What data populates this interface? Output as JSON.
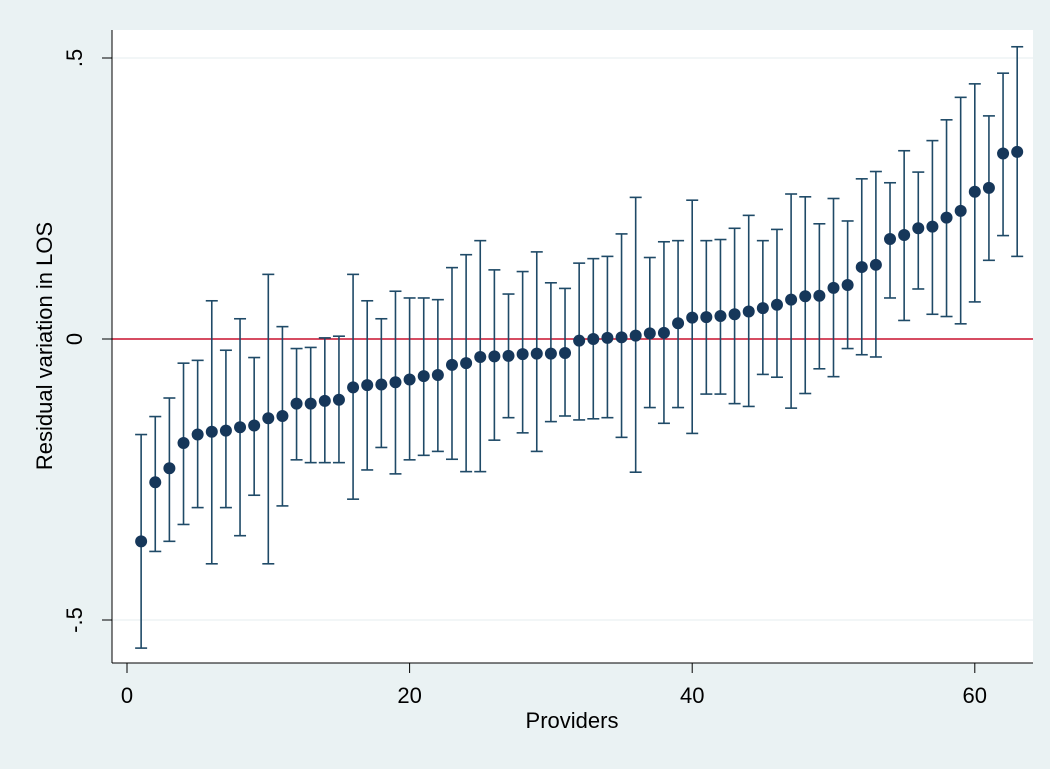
{
  "chart_data": {
    "type": "scatter",
    "subtype": "caterpillar (point estimates with confidence-interval bars)",
    "xlabel": "Providers",
    "ylabel": "Residual variation in LOS",
    "xlim": [
      0,
      63
    ],
    "ylim": [
      -0.55,
      0.52
    ],
    "x_ticks": [
      0,
      20,
      40,
      60
    ],
    "x_tick_labels": [
      "0",
      "20",
      "40",
      "60"
    ],
    "y_ticks": [
      -0.5,
      0,
      0.5
    ],
    "y_tick_labels": [
      "-.5",
      "0",
      ".5"
    ],
    "grid": "horizontal at y ticks",
    "reference_line": {
      "y": 0,
      "color": "#c8102e"
    },
    "colors": {
      "point": "#16375a",
      "error_bar": "#1f4a67",
      "background": "#eaf2f3",
      "plot_area": "#ffffff"
    },
    "series": [
      {
        "x": [
          1,
          2,
          3,
          4,
          5,
          6,
          7,
          8,
          9,
          10,
          11,
          12,
          13,
          14,
          15,
          16,
          17,
          18,
          19,
          20,
          21,
          22,
          23,
          24,
          25,
          26,
          27,
          28,
          29,
          30,
          31,
          32,
          33,
          34,
          35,
          36,
          37,
          38,
          39,
          40,
          41,
          42,
          43,
          44,
          45,
          46,
          47,
          48,
          49,
          50,
          51,
          52,
          53,
          54,
          55,
          56,
          57,
          58,
          59,
          60,
          61,
          62,
          63
        ],
        "y": [
          -0.36,
          -0.255,
          -0.23,
          -0.185,
          -0.17,
          -0.165,
          -0.163,
          -0.157,
          -0.154,
          -0.141,
          -0.137,
          -0.115,
          -0.115,
          -0.11,
          -0.108,
          -0.086,
          -0.082,
          -0.081,
          -0.077,
          -0.072,
          -0.066,
          -0.064,
          -0.046,
          -0.043,
          -0.032,
          -0.031,
          -0.03,
          -0.027,
          -0.026,
          -0.026,
          -0.025,
          -0.003,
          0.0,
          0.002,
          0.003,
          0.006,
          0.01,
          0.011,
          0.028,
          0.038,
          0.039,
          0.041,
          0.044,
          0.049,
          0.055,
          0.061,
          0.07,
          0.076,
          0.077,
          0.091,
          0.096,
          0.128,
          0.132,
          0.178,
          0.185,
          0.197,
          0.2,
          0.216,
          0.228,
          0.262,
          0.269,
          0.33,
          0.333
        ],
        "lower": [
          -0.55,
          -0.378,
          -0.36,
          -0.33,
          -0.3,
          -0.4,
          -0.3,
          -0.35,
          -0.278,
          -0.4,
          -0.297,
          -0.215,
          -0.22,
          -0.22,
          -0.22,
          -0.285,
          -0.233,
          -0.193,
          -0.24,
          -0.215,
          -0.207,
          -0.2,
          -0.214,
          -0.236,
          -0.236,
          -0.18,
          -0.14,
          -0.167,
          -0.2,
          -0.147,
          -0.137,
          -0.144,
          -0.142,
          -0.14,
          -0.175,
          -0.237,
          -0.122,
          -0.15,
          -0.122,
          -0.168,
          -0.098,
          -0.098,
          -0.115,
          -0.12,
          -0.063,
          -0.068,
          -0.123,
          -0.097,
          -0.053,
          -0.067,
          -0.017,
          -0.028,
          -0.032,
          0.073,
          0.033,
          0.089,
          0.044,
          0.04,
          0.027,
          0.066,
          0.14,
          0.184,
          0.147
        ],
        "upper": [
          -0.17,
          -0.138,
          -0.105,
          -0.043,
          -0.038,
          0.068,
          -0.02,
          0.036,
          -0.033,
          0.115,
          0.022,
          -0.017,
          -0.015,
          0.002,
          0.005,
          0.115,
          0.068,
          0.036,
          0.085,
          0.073,
          0.073,
          0.07,
          0.127,
          0.15,
          0.175,
          0.123,
          0.08,
          0.12,
          0.155,
          0.1,
          0.09,
          0.135,
          0.143,
          0.147,
          0.187,
          0.252,
          0.145,
          0.173,
          0.175,
          0.247,
          0.175,
          0.177,
          0.197,
          0.22,
          0.175,
          0.195,
          0.258,
          0.253,
          0.205,
          0.25,
          0.21,
          0.285,
          0.298,
          0.278,
          0.335,
          0.297,
          0.353,
          0.39,
          0.43,
          0.454,
          0.397,
          0.473,
          0.52
        ]
      }
    ]
  }
}
